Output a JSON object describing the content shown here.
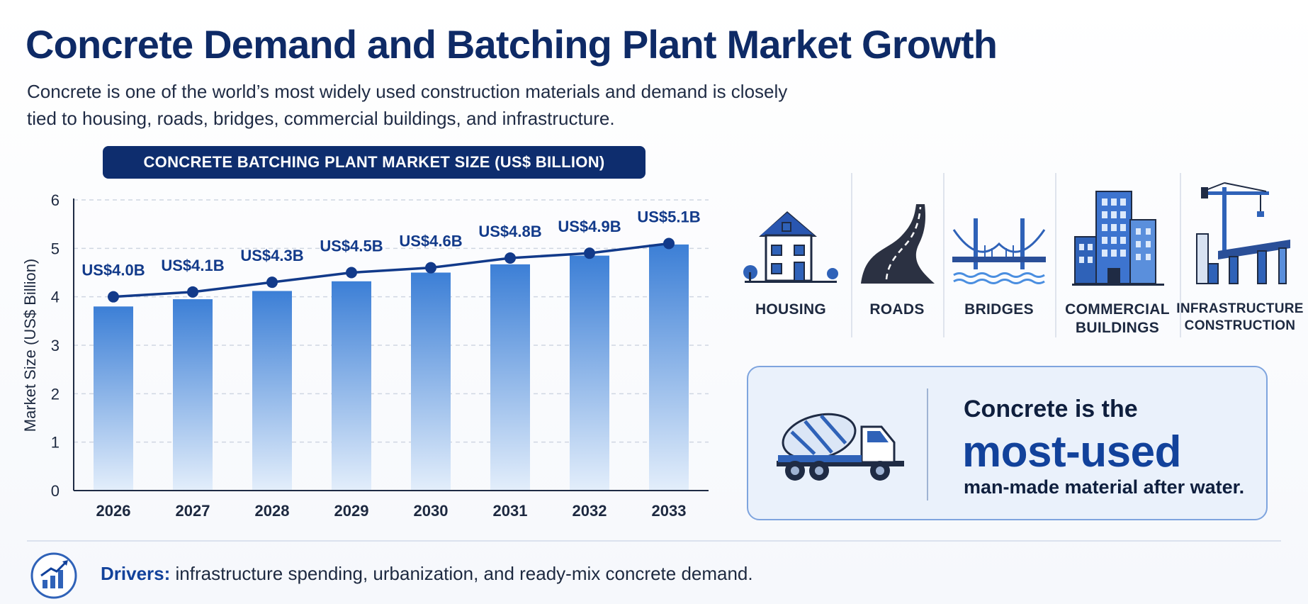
{
  "title": "Concrete Demand and Batching Plant Market Growth",
  "subtitle": "Concrete is one of the world’s most widely used construction materials and demand is closely tied to housing, roads, bridges, commercial buildings, and infrastructure.",
  "chart_data": {
    "type": "bar",
    "title": "CONCRETE BATCHING PLANT MARKET SIZE (US$ BILLION)",
    "xlabel": "",
    "ylabel": "Market Size (US$ Billion)",
    "ylim": [
      0,
      6
    ],
    "yticks": [
      "0",
      "1",
      "2",
      "3",
      "4",
      "5",
      "6"
    ],
    "categories": [
      "2026",
      "2027",
      "2028",
      "2029",
      "2030",
      "2031",
      "2032",
      "2033"
    ],
    "values": [
      3.8,
      3.95,
      4.12,
      4.32,
      4.5,
      4.67,
      4.85,
      5.08
    ],
    "line_values": [
      4.0,
      4.1,
      4.3,
      4.5,
      4.6,
      4.8,
      4.9,
      5.1
    ],
    "data_labels": [
      "US$4.0B",
      "US$4.1B",
      "US$4.3B",
      "US$4.5B",
      "US$4.6B",
      "US$4.8B",
      "US$4.9B",
      "US$5.1B"
    ],
    "grid": true,
    "colors": {
      "bar_top": "#3c7fd6",
      "bar_bottom": "#e3eefb",
      "line": "#123a8a",
      "label": "#123a8a"
    }
  },
  "applications": [
    {
      "label": "HOUSING",
      "icon": "house-icon"
    },
    {
      "label": "ROADS",
      "icon": "road-icon"
    },
    {
      "label": "BRIDGES",
      "icon": "bridge-icon"
    },
    {
      "label": "COMMERCIAL\nBUILDINGS",
      "icon": "buildings-icon"
    },
    {
      "label": "INFRASTRUCTURE\nCONSTRUCTION",
      "icon": "crane-icon"
    }
  ],
  "fact": {
    "line1": "Concrete is the",
    "line2": "most-used",
    "line3": "man-made material after water.",
    "icon": "mixer-truck-icon"
  },
  "footer": {
    "label": "Drivers:",
    "text": " infrastructure spending, urbanization, and ready-mix concrete demand.",
    "icon": "growth-chart-icon"
  },
  "colors": {
    "navy": "#0e2d6e",
    "accent": "#12429b",
    "panel": "#eaf1fb"
  }
}
